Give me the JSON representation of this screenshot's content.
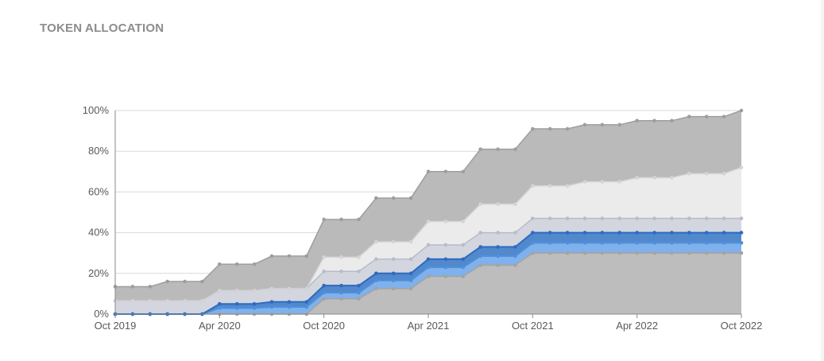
{
  "section": {
    "title": "TOKEN ALLOCATION"
  },
  "chart_data": {
    "type": "area",
    "stacked": true,
    "grid": true,
    "x": [
      "2019-10",
      "2019-11",
      "2019-12",
      "2020-01",
      "2020-02",
      "2020-03",
      "2020-04",
      "2020-05",
      "2020-06",
      "2020-07",
      "2020-08",
      "2020-09",
      "2020-10",
      "2020-11",
      "2020-12",
      "2021-01",
      "2021-02",
      "2021-03",
      "2021-04",
      "2021-05",
      "2021-06",
      "2021-07",
      "2021-08",
      "2021-09",
      "2021-10",
      "2021-11",
      "2021-12",
      "2022-01",
      "2022-02",
      "2022-03",
      "2022-04",
      "2022-05",
      "2022-06",
      "2022-07",
      "2022-08",
      "2022-09",
      "2022-10"
    ],
    "x_tick_labels": [
      "Oct 2019",
      "Apr 2020",
      "Oct 2020",
      "Apr 2021",
      "Oct 2021",
      "Apr 2022",
      "Oct 2022"
    ],
    "x_tick_values": [
      "2019-10",
      "2020-04",
      "2020-10",
      "2021-04",
      "2021-10",
      "2022-04",
      "2022-10"
    ],
    "y_tick_labels": [
      "0%",
      "20%",
      "40%",
      "60%",
      "80%",
      "100%"
    ],
    "y_tick_values": [
      0,
      20,
      40,
      60,
      80,
      100
    ],
    "ylim": [
      0,
      100
    ],
    "series": [
      {
        "color": "#bdbdbd",
        "line_color": "#a3a3a3",
        "values": [
          0,
          0,
          0,
          0,
          0,
          0,
          0,
          0,
          0,
          0,
          0,
          0,
          7.5,
          7.5,
          7.5,
          12.5,
          12.5,
          12.5,
          18.5,
          18.5,
          18.5,
          24,
          24,
          24,
          30,
          30,
          30,
          30,
          30,
          30,
          30,
          30,
          30,
          30,
          30,
          30,
          30
        ]
      },
      {
        "color": "#7fb2ec",
        "line_color": "#4f8fdb",
        "values": [
          0,
          0,
          0,
          0,
          0,
          0,
          3,
          3,
          3,
          3.5,
          3.5,
          3.5,
          3,
          3,
          3,
          4,
          4,
          4,
          4.5,
          4.5,
          4.5,
          4.5,
          4.5,
          4.5,
          5,
          5,
          5,
          5,
          5,
          5,
          5,
          5,
          5,
          5,
          5,
          5,
          5
        ]
      },
      {
        "color": "#5288cc",
        "line_color": "#2e6bbf",
        "values": [
          0,
          0,
          0,
          0,
          0,
          0,
          2,
          2,
          2,
          2.5,
          2.5,
          2.5,
          3.5,
          3.5,
          3.5,
          3.5,
          3.5,
          3.5,
          4,
          4,
          4,
          4.5,
          4.5,
          4.5,
          5,
          5,
          5,
          5,
          5,
          5,
          5,
          5,
          5,
          5,
          5,
          5,
          5
        ]
      },
      {
        "color": "#d3d6df",
        "line_color": "#b7bccb",
        "values": [
          6.5,
          6.5,
          6.5,
          6.5,
          6.5,
          6.5,
          6.5,
          6.5,
          6.5,
          6.5,
          6.5,
          6.5,
          7,
          7,
          7,
          7,
          7,
          7,
          7,
          7,
          7,
          7,
          7,
          7,
          7,
          7,
          7,
          7,
          7,
          7,
          7,
          7,
          7,
          7,
          7,
          7,
          7
        ]
      },
      {
        "color": "#ebebeb",
        "line_color": "#d4d4d4",
        "values": [
          0,
          0,
          0,
          0,
          0,
          0,
          0,
          0,
          0,
          0,
          0,
          0,
          7,
          7,
          7,
          8.5,
          8.5,
          8.5,
          11.5,
          11.5,
          11.5,
          14,
          14,
          14,
          16,
          16,
          16,
          18,
          18,
          18,
          20,
          20,
          20,
          22,
          22,
          22,
          25
        ]
      },
      {
        "color": "#bababa",
        "line_color": "#9e9e9e",
        "values": [
          7,
          7,
          7,
          9.5,
          9.5,
          9.5,
          13,
          13,
          13,
          16,
          16,
          16,
          18.5,
          18.5,
          18.5,
          21.5,
          21.5,
          21.5,
          24.5,
          24.5,
          24.5,
          27,
          27,
          27,
          28,
          28,
          28,
          28,
          28,
          28,
          28,
          28,
          28,
          28,
          28,
          28,
          28
        ]
      }
    ]
  }
}
